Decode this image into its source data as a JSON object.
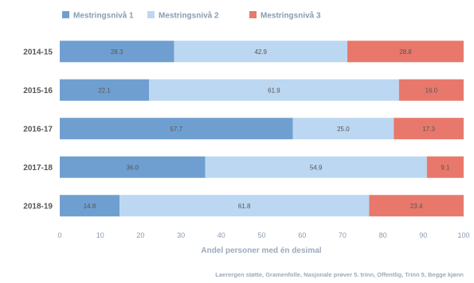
{
  "chart_data": {
    "type": "bar",
    "orientation": "horizontal",
    "stacked": true,
    "categories": [
      "2014-15",
      "2015-16",
      "2016-17",
      "2017-18",
      "2018-19"
    ],
    "series": [
      {
        "name": "Mestringsnivå 1",
        "color": "#6f9fd0",
        "values": [
          28.3,
          22.1,
          57.7,
          36.0,
          14.8
        ],
        "labels": [
          "28.3",
          "22.1",
          "57.7",
          "36.0",
          "14.8"
        ]
      },
      {
        "name": "Mestringsnivå 2",
        "color": "#bcd7f1",
        "values": [
          42.9,
          61.9,
          25.0,
          54.9,
          61.8
        ],
        "labels": [
          "42.9",
          "61.9",
          "25.0",
          "54.9",
          "61.8"
        ]
      },
      {
        "name": "Mestringsnivå 3",
        "color": "#e8786c",
        "values": [
          28.8,
          16.0,
          17.3,
          9.1,
          23.4
        ],
        "labels": [
          "28.8",
          "16.0",
          "17.3",
          "9.1",
          "23.4"
        ]
      }
    ],
    "xlim": [
      0,
      100
    ],
    "xticks": [
      0,
      10,
      20,
      30,
      40,
      50,
      60,
      70,
      80,
      90,
      100
    ],
    "xlabel": "Andel personer med én desimal",
    "ylabel": "",
    "legend_position": "top",
    "grid": false
  },
  "footer": {
    "source": "Laerergen støtte, Gramenfolle, Nasjonale prøver 5. trinn, Offentlig, Trinn 5, Begge kjønn"
  }
}
